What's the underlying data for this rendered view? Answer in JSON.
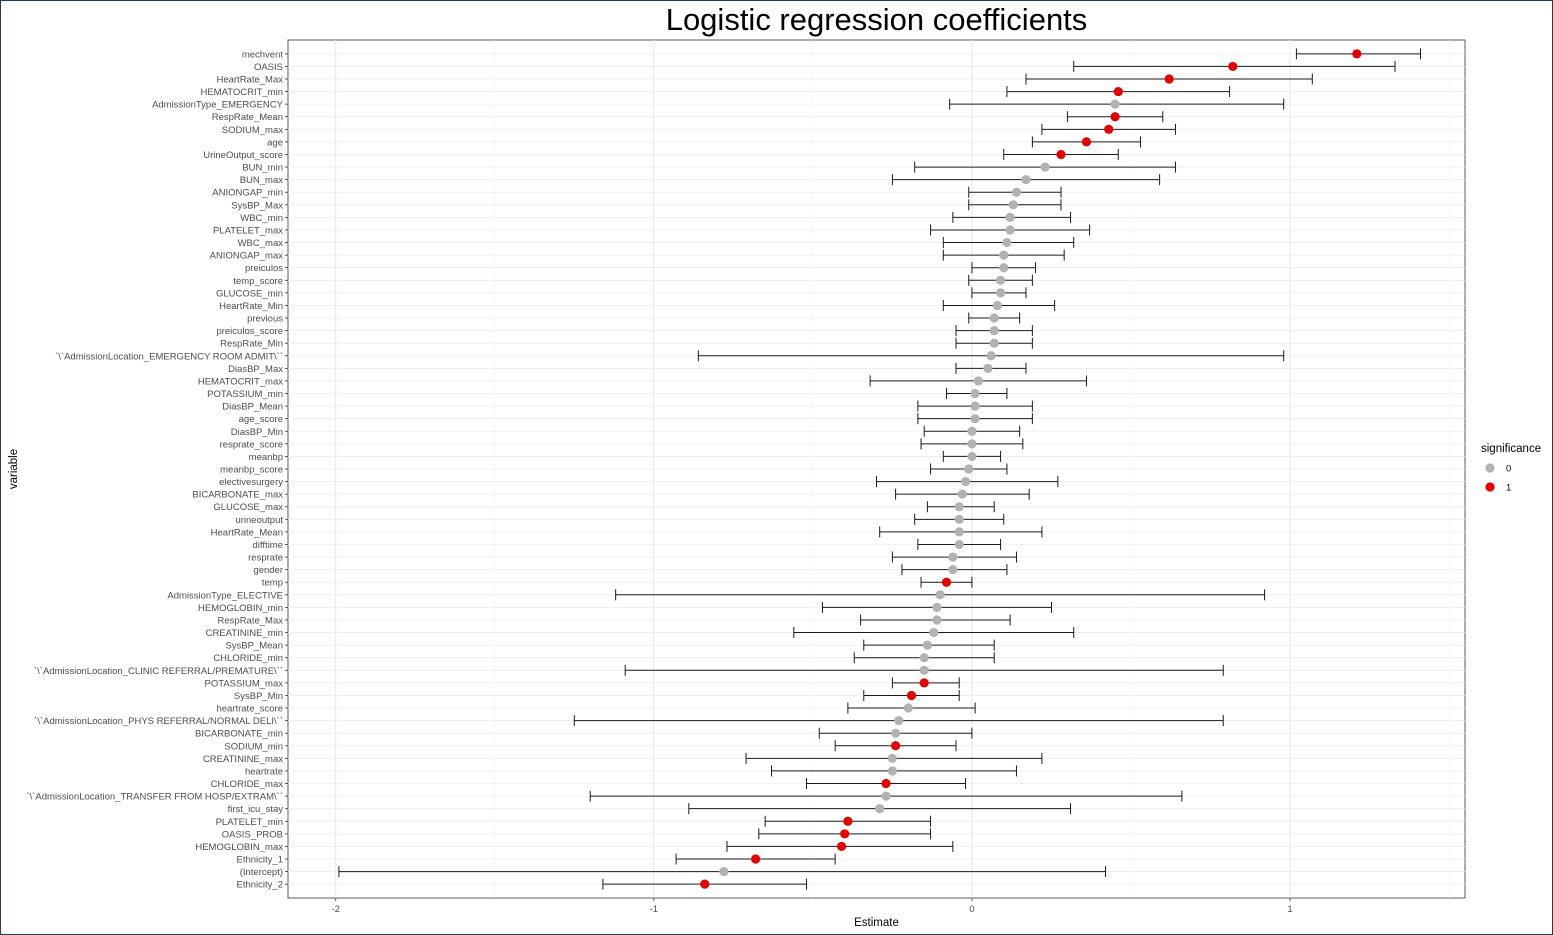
{
  "chart_data": {
    "type": "scatter",
    "subtype": "coefficient-plot-with-error-bars",
    "title": "Logistic regression coefficients",
    "xlabel": "Estimate",
    "ylabel": "variable",
    "xlim": [
      -2.15,
      1.55
    ],
    "x_ticks": [
      -2,
      -1,
      0,
      1
    ],
    "x_tick_labels": [
      "-2",
      "-1",
      "0",
      "1"
    ],
    "grid": true,
    "legend": {
      "title": "significance",
      "position": "right",
      "entries": [
        {
          "label": "0",
          "color": "#b2b2b2"
        },
        {
          "label": "1",
          "color": "#e60000"
        }
      ]
    },
    "points": [
      {
        "variable": "mechvent",
        "estimate": 1.21,
        "lower": 1.02,
        "upper": 1.41,
        "sig": 1
      },
      {
        "variable": "OASIS",
        "estimate": 0.82,
        "lower": 0.32,
        "upper": 1.33,
        "sig": 1
      },
      {
        "variable": "HeartRate_Max",
        "estimate": 0.62,
        "lower": 0.17,
        "upper": 1.07,
        "sig": 1
      },
      {
        "variable": "HEMATOCRIT_min",
        "estimate": 0.46,
        "lower": 0.11,
        "upper": 0.81,
        "sig": 1
      },
      {
        "variable": "AdmissionType_EMERGENCY",
        "estimate": 0.45,
        "lower": -0.07,
        "upper": 0.98,
        "sig": 0
      },
      {
        "variable": "RespRate_Mean",
        "estimate": 0.45,
        "lower": 0.3,
        "upper": 0.6,
        "sig": 1
      },
      {
        "variable": "SODIUM_max",
        "estimate": 0.43,
        "lower": 0.22,
        "upper": 0.64,
        "sig": 1
      },
      {
        "variable": "age",
        "estimate": 0.36,
        "lower": 0.19,
        "upper": 0.53,
        "sig": 1
      },
      {
        "variable": "UrineOutput_score",
        "estimate": 0.28,
        "lower": 0.1,
        "upper": 0.46,
        "sig": 1
      },
      {
        "variable": "BUN_min",
        "estimate": 0.23,
        "lower": -0.18,
        "upper": 0.64,
        "sig": 0
      },
      {
        "variable": "BUN_max",
        "estimate": 0.17,
        "lower": -0.25,
        "upper": 0.59,
        "sig": 0
      },
      {
        "variable": "ANIONGAP_min",
        "estimate": 0.14,
        "lower": -0.01,
        "upper": 0.28,
        "sig": 0
      },
      {
        "variable": "SysBP_Max",
        "estimate": 0.13,
        "lower": -0.01,
        "upper": 0.28,
        "sig": 0
      },
      {
        "variable": "WBC_min",
        "estimate": 0.12,
        "lower": -0.06,
        "upper": 0.31,
        "sig": 0
      },
      {
        "variable": "PLATELET_max",
        "estimate": 0.12,
        "lower": -0.13,
        "upper": 0.37,
        "sig": 0
      },
      {
        "variable": "WBC_max",
        "estimate": 0.11,
        "lower": -0.09,
        "upper": 0.32,
        "sig": 0
      },
      {
        "variable": "ANIONGAP_max",
        "estimate": 0.1,
        "lower": -0.09,
        "upper": 0.29,
        "sig": 0
      },
      {
        "variable": "preiculos",
        "estimate": 0.1,
        "lower": 0.0,
        "upper": 0.2,
        "sig": 0
      },
      {
        "variable": "temp_score",
        "estimate": 0.09,
        "lower": -0.01,
        "upper": 0.19,
        "sig": 0
      },
      {
        "variable": "GLUCOSE_min",
        "estimate": 0.09,
        "lower": 0.0,
        "upper": 0.17,
        "sig": 0
      },
      {
        "variable": "HeartRate_Min",
        "estimate": 0.08,
        "lower": -0.09,
        "upper": 0.26,
        "sig": 0
      },
      {
        "variable": "previous",
        "estimate": 0.07,
        "lower": -0.01,
        "upper": 0.15,
        "sig": 0
      },
      {
        "variable": "preiculos_score",
        "estimate": 0.07,
        "lower": -0.05,
        "upper": 0.19,
        "sig": 0
      },
      {
        "variable": "RespRate_Min",
        "estimate": 0.07,
        "lower": -0.05,
        "upper": 0.19,
        "sig": 0
      },
      {
        "variable": "`\\`AdmissionLocation_EMERGENCY ROOM ADMIT\\``",
        "estimate": 0.06,
        "lower": -0.86,
        "upper": 0.98,
        "sig": 0
      },
      {
        "variable": "DiasBP_Max",
        "estimate": 0.05,
        "lower": -0.05,
        "upper": 0.17,
        "sig": 0
      },
      {
        "variable": "HEMATOCRIT_max",
        "estimate": 0.02,
        "lower": -0.32,
        "upper": 0.36,
        "sig": 0
      },
      {
        "variable": "POTASSIUM_min",
        "estimate": 0.01,
        "lower": -0.08,
        "upper": 0.11,
        "sig": 0
      },
      {
        "variable": "DiasBP_Mean",
        "estimate": 0.01,
        "lower": -0.17,
        "upper": 0.19,
        "sig": 0
      },
      {
        "variable": "age_score",
        "estimate": 0.01,
        "lower": -0.17,
        "upper": 0.19,
        "sig": 0
      },
      {
        "variable": "DiasBP_Min",
        "estimate": 0.0,
        "lower": -0.15,
        "upper": 0.15,
        "sig": 0
      },
      {
        "variable": "resprate_score",
        "estimate": 0.0,
        "lower": -0.16,
        "upper": 0.16,
        "sig": 0
      },
      {
        "variable": "meanbp",
        "estimate": 0.0,
        "lower": -0.09,
        "upper": 0.09,
        "sig": 0
      },
      {
        "variable": "meanbp_score",
        "estimate": -0.01,
        "lower": -0.13,
        "upper": 0.11,
        "sig": 0
      },
      {
        "variable": "electivesurgery",
        "estimate": -0.02,
        "lower": -0.3,
        "upper": 0.27,
        "sig": 0
      },
      {
        "variable": "BICARBONATE_max",
        "estimate": -0.03,
        "lower": -0.24,
        "upper": 0.18,
        "sig": 0
      },
      {
        "variable": "GLUCOSE_max",
        "estimate": -0.04,
        "lower": -0.14,
        "upper": 0.07,
        "sig": 0
      },
      {
        "variable": "urineoutput",
        "estimate": -0.04,
        "lower": -0.18,
        "upper": 0.1,
        "sig": 0
      },
      {
        "variable": "HeartRate_Mean",
        "estimate": -0.04,
        "lower": -0.29,
        "upper": 0.22,
        "sig": 0
      },
      {
        "variable": "difftime",
        "estimate": -0.04,
        "lower": -0.17,
        "upper": 0.09,
        "sig": 0
      },
      {
        "variable": "resprate",
        "estimate": -0.06,
        "lower": -0.25,
        "upper": 0.14,
        "sig": 0
      },
      {
        "variable": "gender",
        "estimate": -0.06,
        "lower": -0.22,
        "upper": 0.11,
        "sig": 0
      },
      {
        "variable": "temp",
        "estimate": -0.08,
        "lower": -0.16,
        "upper": 0.0,
        "sig": 1
      },
      {
        "variable": "AdmissionType_ELECTIVE",
        "estimate": -0.1,
        "lower": -1.12,
        "upper": 0.92,
        "sig": 0
      },
      {
        "variable": "HEMOGLOBIN_min",
        "estimate": -0.11,
        "lower": -0.47,
        "upper": 0.25,
        "sig": 0
      },
      {
        "variable": "RespRate_Max",
        "estimate": -0.11,
        "lower": -0.35,
        "upper": 0.12,
        "sig": 0
      },
      {
        "variable": "CREATININE_min",
        "estimate": -0.12,
        "lower": -0.56,
        "upper": 0.32,
        "sig": 0
      },
      {
        "variable": "SysBP_Mean",
        "estimate": -0.14,
        "lower": -0.34,
        "upper": 0.07,
        "sig": 0
      },
      {
        "variable": "CHLORIDE_min",
        "estimate": -0.15,
        "lower": -0.37,
        "upper": 0.07,
        "sig": 0
      },
      {
        "variable": "`\\`AdmissionLocation_CLINIC REFERRAL/PREMATURE\\``",
        "estimate": -0.15,
        "lower": -1.09,
        "upper": 0.79,
        "sig": 0
      },
      {
        "variable": "POTASSIUM_max",
        "estimate": -0.15,
        "lower": -0.25,
        "upper": -0.04,
        "sig": 1
      },
      {
        "variable": "SysBP_Min",
        "estimate": -0.19,
        "lower": -0.34,
        "upper": -0.04,
        "sig": 1
      },
      {
        "variable": "heartrate_score",
        "estimate": -0.2,
        "lower": -0.39,
        "upper": 0.01,
        "sig": 0
      },
      {
        "variable": "`\\`AdmissionLocation_PHYS REFERRAL/NORMAL DELI\\``",
        "estimate": -0.23,
        "lower": -1.25,
        "upper": 0.79,
        "sig": 0
      },
      {
        "variable": "BICARBONATE_min",
        "estimate": -0.24,
        "lower": -0.48,
        "upper": 0.0,
        "sig": 0
      },
      {
        "variable": "SODIUM_min",
        "estimate": -0.24,
        "lower": -0.43,
        "upper": -0.05,
        "sig": 1
      },
      {
        "variable": "CREATININE_max",
        "estimate": -0.25,
        "lower": -0.71,
        "upper": 0.22,
        "sig": 0
      },
      {
        "variable": "heartrate",
        "estimate": -0.25,
        "lower": -0.63,
        "upper": 0.14,
        "sig": 0
      },
      {
        "variable": "CHLORIDE_max",
        "estimate": -0.27,
        "lower": -0.52,
        "upper": -0.02,
        "sig": 1
      },
      {
        "variable": "`\\`AdmissionLocation_TRANSFER FROM HOSP/EXTRAM\\``",
        "estimate": -0.27,
        "lower": -1.2,
        "upper": 0.66,
        "sig": 0
      },
      {
        "variable": "first_icu_stay",
        "estimate": -0.29,
        "lower": -0.89,
        "upper": 0.31,
        "sig": 0
      },
      {
        "variable": "PLATELET_min",
        "estimate": -0.39,
        "lower": -0.65,
        "upper": -0.13,
        "sig": 1
      },
      {
        "variable": "OASIS_PROB",
        "estimate": -0.4,
        "lower": -0.67,
        "upper": -0.13,
        "sig": 1
      },
      {
        "variable": "HEMOGLOBIN_max",
        "estimate": -0.41,
        "lower": -0.77,
        "upper": -0.06,
        "sig": 1
      },
      {
        "variable": "Ethnicity_1",
        "estimate": -0.68,
        "lower": -0.93,
        "upper": -0.43,
        "sig": 1
      },
      {
        "variable": "(Intercept)",
        "estimate": -0.78,
        "lower": -1.99,
        "upper": 0.42,
        "sig": 0
      },
      {
        "variable": "Ethnicity_2",
        "estimate": -0.84,
        "lower": -1.16,
        "upper": -0.52,
        "sig": 1
      }
    ]
  }
}
